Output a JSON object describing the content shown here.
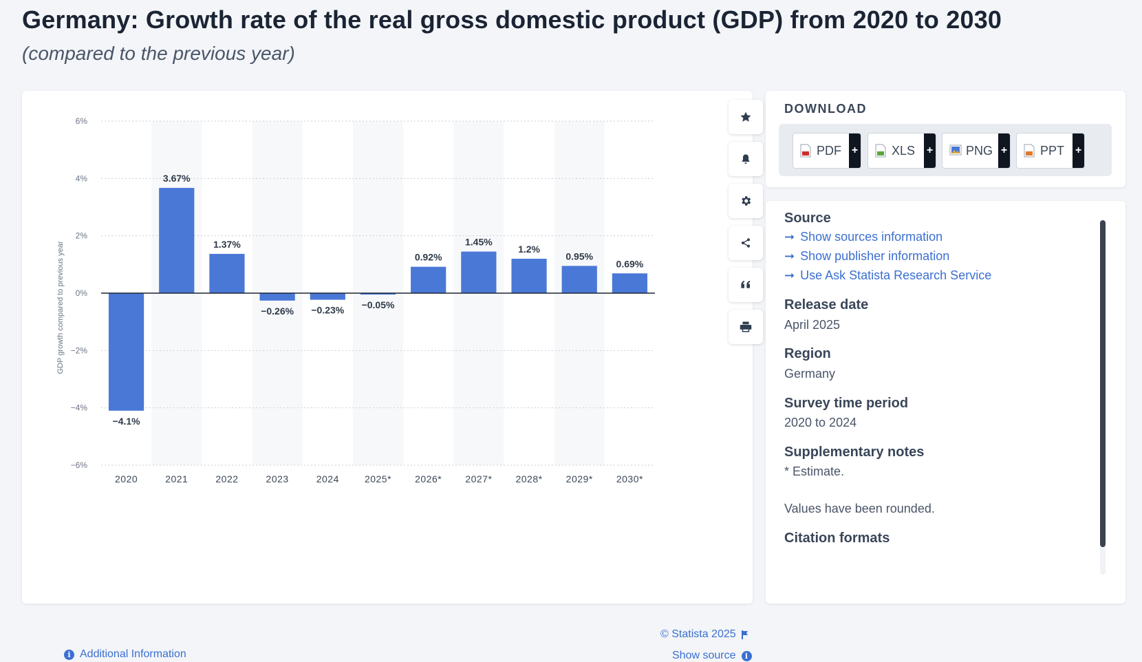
{
  "header": {
    "title": "Germany: Growth rate of the real gross domestic product (GDP) from 2020 to 2030",
    "subtitle": "(compared to the previous year)"
  },
  "chart_data": {
    "type": "bar",
    "categories": [
      "2020",
      "2021",
      "2022",
      "2023",
      "2024",
      "2025*",
      "2026*",
      "2027*",
      "2028*",
      "2029*",
      "2030*"
    ],
    "values": [
      -4.1,
      3.67,
      1.37,
      -0.26,
      -0.23,
      -0.05,
      0.92,
      1.45,
      1.2,
      0.95,
      0.69
    ],
    "value_labels": [
      "−4.1%",
      "3.67%",
      "1.37%",
      "−0.26%",
      "−0.23%",
      "−0.05%",
      "0.92%",
      "1.45%",
      "1.2%",
      "0.95%",
      "0.69%"
    ],
    "yticks": [
      6,
      4,
      2,
      0,
      -2,
      -4,
      -6
    ],
    "ytick_labels": [
      "6%",
      "4%",
      "2%",
      "0%",
      "−2%",
      "−4%",
      "−6%"
    ],
    "ylim": [
      -6,
      6
    ],
    "ylabel": "GDP growth compared to previous year",
    "xlabel": "",
    "bar_color": "#4a78d6",
    "band_color": "#f7f8fa",
    "grid": true
  },
  "chart_footer": {
    "copyright": "© Statista 2025",
    "show_source": "Show source",
    "additional_info": "Additional Information"
  },
  "toolbar": {
    "icons": [
      "star-icon",
      "bell-icon",
      "gear-icon",
      "share-icon",
      "quote-icon",
      "print-icon"
    ]
  },
  "download": {
    "heading": "DOWNLOAD",
    "formats": [
      {
        "label": "PDF",
        "color": "#c9302c"
      },
      {
        "label": "XLS",
        "color": "#5aa63a"
      },
      {
        "label": "PNG",
        "color": "#4a78d6"
      },
      {
        "label": "PPT",
        "color": "#e07b2a"
      }
    ],
    "plus": "+"
  },
  "info": {
    "source_heading": "Source",
    "links": [
      "Show sources information",
      "Show publisher information",
      "Use Ask Statista Research Service"
    ],
    "release_heading": "Release date",
    "release_value": "April 2025",
    "region_heading": "Region",
    "region_value": "Germany",
    "survey_heading": "Survey time period",
    "survey_value": "2020 to 2024",
    "notes_heading": "Supplementary notes",
    "notes_value_1": "* Estimate.",
    "notes_value_2": "Values have been rounded.",
    "citation_heading": "Citation formats"
  }
}
